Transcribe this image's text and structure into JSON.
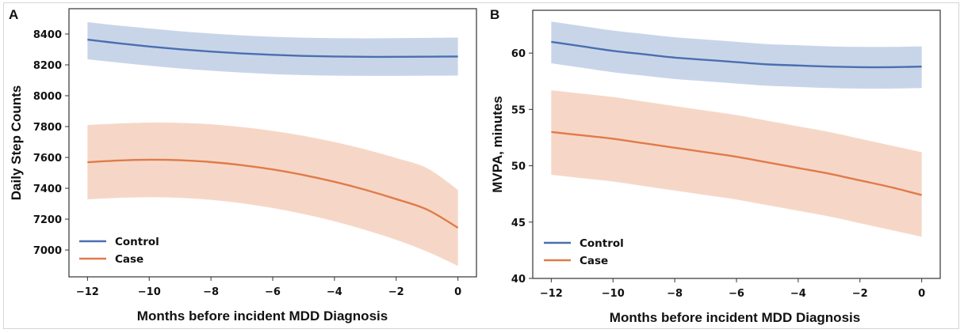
{
  "chart_data": [
    {
      "type": "line",
      "panel_label": "A",
      "title": "",
      "xlabel": "Months before incident MDD Diagnosis",
      "ylabel": "Daily Step Counts",
      "xlim": [
        -12.6,
        0.6
      ],
      "ylim": [
        6826,
        8564
      ],
      "xticks": [
        -12,
        -10,
        -8,
        -6,
        -4,
        -2,
        0
      ],
      "xtick_labels": [
        "−12",
        "−10",
        "−8",
        "−6",
        "−4",
        "−2",
        "0"
      ],
      "yticks": [
        7000,
        7200,
        7400,
        7600,
        7800,
        8000,
        8200,
        8400
      ],
      "ytick_labels": [
        "7000",
        "7200",
        "7400",
        "7600",
        "7800",
        "8000",
        "8200",
        "8400"
      ],
      "grid": false,
      "legend_position": "lower-left",
      "x": [
        -12,
        -11,
        -10,
        -9,
        -8,
        -7,
        -6,
        -5,
        -4,
        -3,
        -2,
        -1,
        0
      ],
      "series": [
        {
          "name": "Control",
          "color": "#4a6fb0",
          "band_color": "#c5d3e8",
          "values": [
            8364,
            8340,
            8319,
            8301,
            8286,
            8274,
            8265,
            8258,
            8254,
            8252,
            8252,
            8253,
            8254
          ],
          "lower": [
            8236,
            8215,
            8195,
            8177,
            8162,
            8150,
            8140,
            8134,
            8130,
            8129,
            8129,
            8130,
            8131
          ],
          "upper": [
            8477,
            8455,
            8436,
            8418,
            8403,
            8391,
            8382,
            8376,
            8373,
            8372,
            8373,
            8375,
            8377
          ]
        },
        {
          "name": "Case",
          "color": "#e07b4a",
          "band_color": "#f5d5c4",
          "values": [
            7569,
            7580,
            7585,
            7582,
            7570,
            7550,
            7522,
            7486,
            7442,
            7390,
            7330,
            7262,
            7144
          ],
          "lower": [
            7328,
            7338,
            7342,
            7338,
            7325,
            7303,
            7272,
            7233,
            7186,
            7130,
            7066,
            6990,
            6897
          ],
          "upper": [
            7810,
            7820,
            7826,
            7824,
            7815,
            7797,
            7772,
            7740,
            7700,
            7652,
            7596,
            7530,
            7390
          ]
        }
      ]
    },
    {
      "type": "line",
      "panel_label": "B",
      "title": "",
      "xlabel": "Months before incident MDD Diagnosis",
      "ylabel": "MVPA, minutes",
      "xlim": [
        -12.6,
        0.6
      ],
      "ylim": [
        40,
        63.8
      ],
      "xticks": [
        -12,
        -10,
        -8,
        -6,
        -4,
        -2,
        0
      ],
      "xtick_labels": [
        "−12",
        "−10",
        "−8",
        "−6",
        "−4",
        "−2",
        "0"
      ],
      "yticks": [
        40,
        45,
        50,
        55,
        60
      ],
      "ytick_labels": [
        "40",
        "45",
        "50",
        "55",
        "60"
      ],
      "grid": false,
      "legend_position": "lower-left",
      "x": [
        -12,
        -11,
        -10,
        -9,
        -8,
        -7,
        -6,
        -5,
        -4,
        -3,
        -2,
        -1,
        0
      ],
      "series": [
        {
          "name": "Control",
          "color": "#4a6fb0",
          "band_color": "#c5d3e8",
          "values": [
            61.0,
            60.6,
            60.2,
            59.9,
            59.6,
            59.4,
            59.2,
            59.0,
            58.9,
            58.8,
            58.75,
            58.75,
            58.8
          ],
          "lower": [
            59.1,
            58.7,
            58.3,
            58.0,
            57.7,
            57.5,
            57.3,
            57.1,
            57.0,
            56.9,
            56.85,
            56.85,
            56.9
          ],
          "upper": [
            62.8,
            62.4,
            62.0,
            61.7,
            61.4,
            61.2,
            61.0,
            60.8,
            60.7,
            60.6,
            60.55,
            60.55,
            60.6
          ]
        },
        {
          "name": "Case",
          "color": "#e07b4a",
          "band_color": "#f5d5c4",
          "values": [
            53.0,
            52.7,
            52.4,
            52.0,
            51.6,
            51.2,
            50.8,
            50.3,
            49.8,
            49.3,
            48.7,
            48.1,
            47.4
          ],
          "lower": [
            49.2,
            48.9,
            48.6,
            48.2,
            47.8,
            47.4,
            47.0,
            46.5,
            46.0,
            45.5,
            44.9,
            44.3,
            43.7
          ],
          "upper": [
            56.7,
            56.4,
            56.1,
            55.7,
            55.3,
            54.9,
            54.5,
            54.0,
            53.5,
            53.0,
            52.4,
            51.8,
            51.2
          ]
        }
      ]
    }
  ]
}
